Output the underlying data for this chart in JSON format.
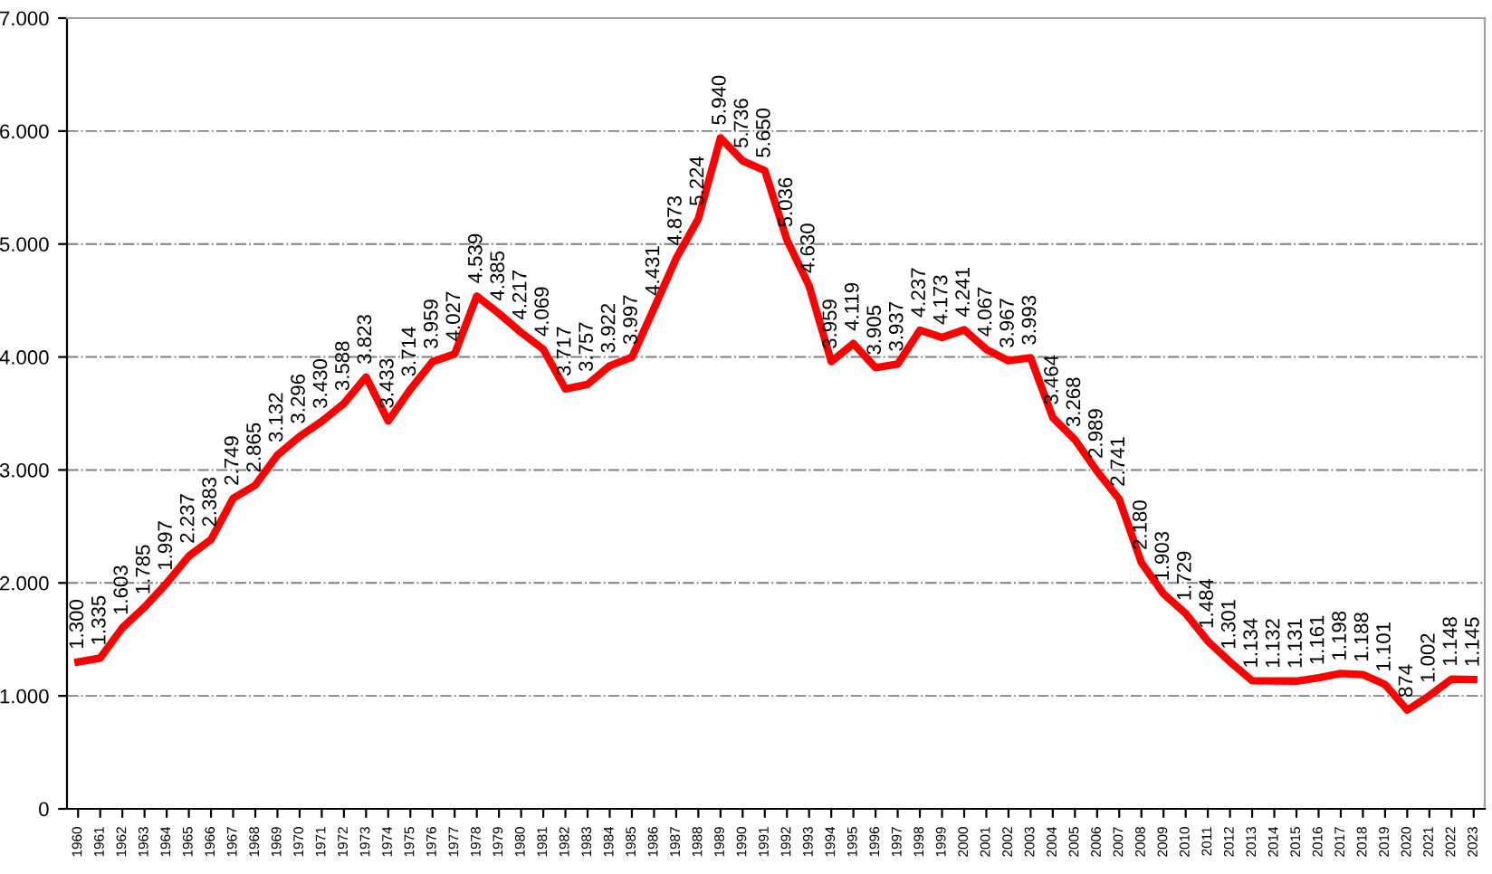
{
  "chart_data": {
    "type": "line",
    "categories": [
      "1960",
      "1961",
      "1962",
      "1963",
      "1964",
      "1965",
      "1966",
      "1967",
      "1968",
      "1969",
      "1970",
      "1971",
      "1972",
      "1973",
      "1974",
      "1975",
      "1976",
      "1977",
      "1978",
      "1979",
      "1980",
      "1981",
      "1982",
      "1983",
      "1984",
      "1985",
      "1986",
      "1987",
      "1988",
      "1989",
      "1990",
      "1991",
      "1992",
      "1993",
      "1994",
      "1995",
      "1996",
      "1997",
      "1998",
      "1999",
      "2000",
      "2001",
      "2002",
      "2003",
      "2004",
      "2005",
      "2006",
      "2007",
      "2008",
      "2009",
      "2010",
      "2011",
      "2012",
      "2013",
      "2014",
      "2015",
      "2016",
      "2017",
      "2018",
      "2019",
      "2020",
      "2021",
      "2022",
      "2023"
    ],
    "series": [
      {
        "color": "#ff0000",
        "values": [
          1300,
          1335,
          1603,
          1785,
          1997,
          2237,
          2383,
          2749,
          2865,
          3132,
          3296,
          3430,
          3588,
          3823,
          3433,
          3714,
          3959,
          4027,
          4539,
          4385,
          4217,
          4069,
          3717,
          3757,
          3922,
          3997,
          4431,
          4873,
          5224,
          5940,
          5736,
          5650,
          5036,
          4630,
          3959,
          4119,
          3905,
          3937,
          4237,
          4173,
          4241,
          4067,
          3967,
          3993,
          3464,
          3268,
          2989,
          2741,
          2180,
          1903,
          1729,
          1484,
          1301,
          1134,
          1132,
          1131,
          1161,
          1198,
          1188,
          1101,
          874,
          1002,
          1148,
          1145
        ],
        "value_labels": [
          "1.300",
          "1.335",
          "1.603",
          "1.785",
          "1.997",
          "2.237",
          "2.383",
          "2.749",
          "2.865",
          "3.132",
          "3.296",
          "3.430",
          "3.588",
          "3.823",
          "3.433",
          "3.714",
          "3.959",
          "4.027",
          "4.539",
          "4.385",
          "4.217",
          "4.069",
          "3.717",
          "3.757",
          "3.922",
          "3.997",
          "4.431",
          "4.873",
          "5.224",
          "5.940",
          "5.736",
          "5.650",
          "5.036",
          "4.630",
          "3.959",
          "4.119",
          "3.905",
          "3.937",
          "4.237",
          "4.173",
          "4.241",
          "4.067",
          "3.967",
          "3.993",
          "3.464",
          "3.268",
          "2.989",
          "2.741",
          "2.180",
          "1.903",
          "1.729",
          "1.484",
          "1.301",
          "1.134",
          "1.132",
          "1.131",
          "1.161",
          "1.198",
          "1.188",
          "1.101",
          "874",
          "1.002",
          "1.148",
          "1.145"
        ]
      }
    ],
    "ylim": [
      0,
      7000
    ],
    "yticks": [
      0,
      {
        "value": 1000,
        "label": "1.000"
      },
      {
        "value": 2000,
        "label": "2.000"
      },
      {
        "value": 3000,
        "label": "3.000"
      },
      {
        "value": 4000,
        "label": "4.000"
      },
      {
        "value": 5000,
        "label": "5.000"
      },
      {
        "value": 6000,
        "label": "6.000"
      },
      {
        "value": 7000,
        "label": "7.000"
      }
    ],
    "grid": "y",
    "marker": "none",
    "line_style": "solid"
  }
}
